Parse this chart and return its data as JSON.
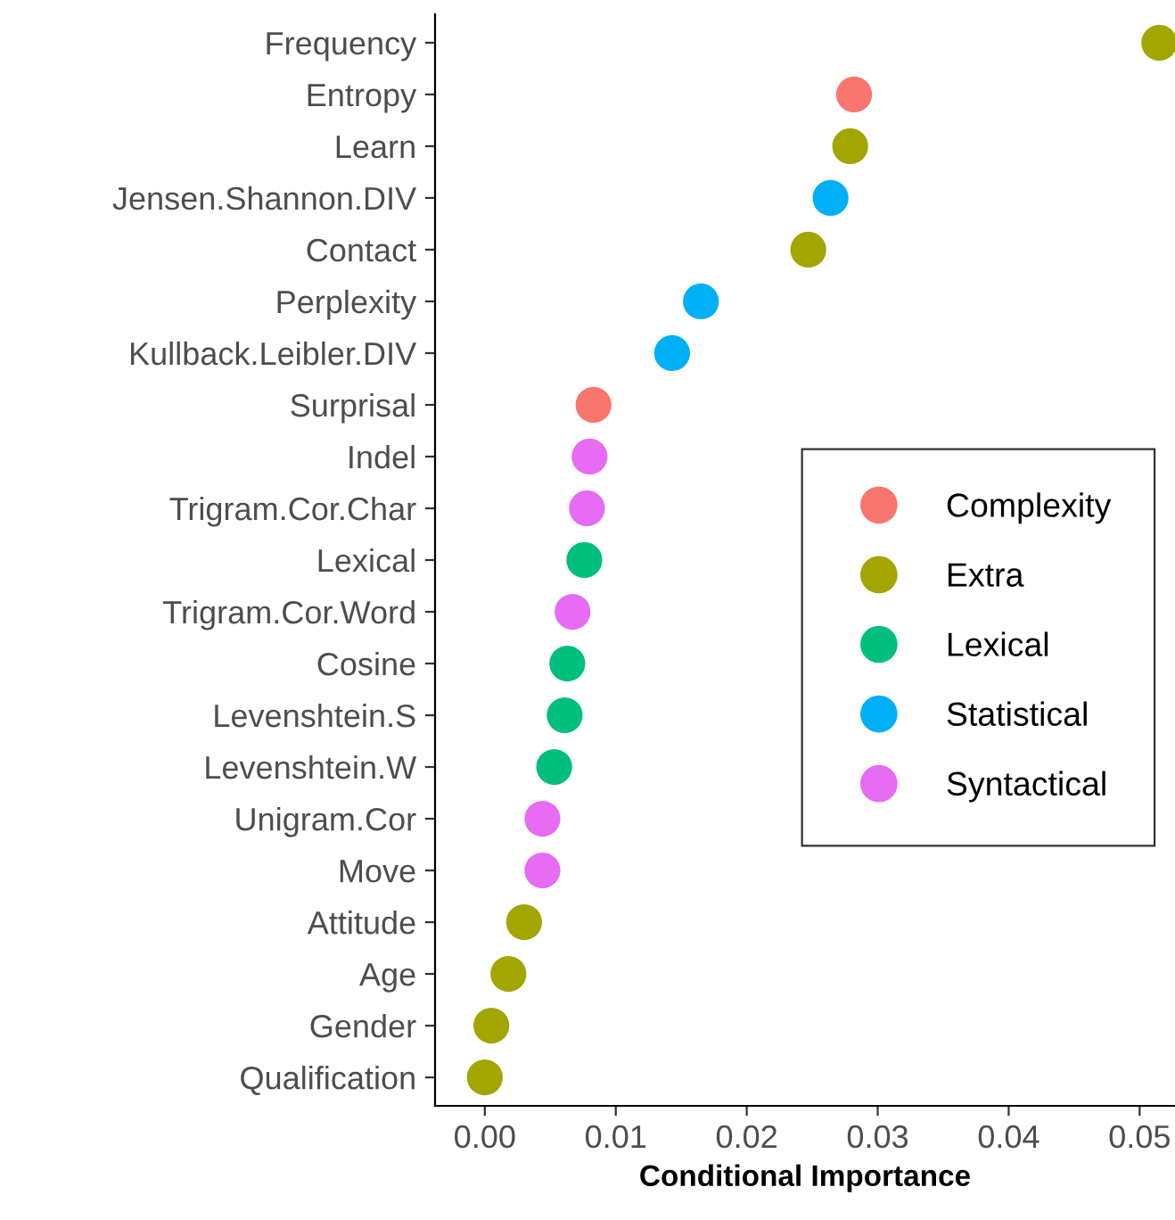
{
  "chart_data": {
    "type": "scatter",
    "orientation": "horizontal",
    "xlabel": "Conditional Importance",
    "categories": [
      "Frequency",
      "Entropy",
      "Learn",
      "Jensen.Shannon.DIV",
      "Contact",
      "Perplexity",
      "Kullback.Leibler.DIV",
      "Surprisal",
      "Indel",
      "Trigram.Cor.Char",
      "Lexical",
      "Trigram.Cor.Word",
      "Cosine",
      "Levenshtein.S",
      "Levenshtein.W",
      "Unigram.Cor",
      "Move",
      "Attitude",
      "Age",
      "Gender",
      "Qualification"
    ],
    "series": [
      {
        "name": "Complexity",
        "color": "#f8766d",
        "values": [
          null,
          0.0282,
          null,
          null,
          null,
          null,
          null,
          0.0083,
          null,
          null,
          null,
          null,
          null,
          null,
          null,
          null,
          null,
          null,
          null,
          null,
          null
        ]
      },
      {
        "name": "Extra",
        "color": "#a3a500",
        "values": [
          0.0515,
          null,
          0.0279,
          null,
          0.0247,
          null,
          null,
          null,
          null,
          null,
          null,
          null,
          null,
          null,
          null,
          null,
          null,
          0.003,
          0.0018,
          0.0005,
          0.0
        ]
      },
      {
        "name": "Lexical",
        "color": "#00bf7d",
        "values": [
          null,
          null,
          null,
          null,
          null,
          null,
          null,
          null,
          null,
          null,
          0.0076,
          null,
          0.0063,
          0.0061,
          0.0053,
          null,
          null,
          null,
          null,
          null,
          null
        ]
      },
      {
        "name": "Statistical",
        "color": "#00b0f6",
        "values": [
          null,
          null,
          null,
          0.0264,
          null,
          0.0165,
          0.0143,
          null,
          null,
          null,
          null,
          null,
          null,
          null,
          null,
          null,
          null,
          null,
          null,
          null,
          null
        ]
      },
      {
        "name": "Syntactical",
        "color": "#e76bf3",
        "values": [
          null,
          null,
          null,
          null,
          null,
          null,
          null,
          null,
          0.008,
          0.0078,
          null,
          0.0067,
          null,
          null,
          null,
          0.0044,
          0.0044,
          null,
          null,
          null,
          null
        ]
      }
    ],
    "xlim": [
      -0.0038,
      0.0527
    ],
    "xticks": [
      {
        "value": 0,
        "label": "0.00"
      },
      0.01,
      0.02,
      0.03,
      0.04,
      0.05
    ],
    "marker": "circle",
    "grid": false,
    "legend": "right"
  }
}
